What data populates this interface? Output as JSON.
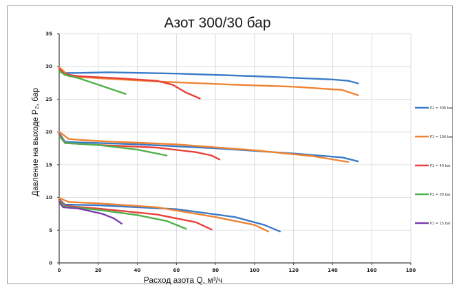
{
  "chart_data": {
    "type": "line",
    "title": "Азот 300/30 бар",
    "xlabel": "Расход азота Q, м³/ч",
    "ylabel": "Давление на выходе P₂, бар",
    "xlim": [
      0,
      180
    ],
    "ylim": [
      0,
      35
    ],
    "x_ticks": [
      0,
      20,
      40,
      60,
      80,
      100,
      120,
      140,
      160,
      180
    ],
    "y_ticks": [
      0,
      5,
      10,
      15,
      20,
      25,
      30,
      35
    ],
    "grid": true,
    "legend_position": "right",
    "series": [
      {
        "name": "P1 = 300 bar",
        "color": "#3a7bc8",
        "curves": [
          [
            [
              0,
              29.8
            ],
            [
              3,
              29.0
            ],
            [
              10,
              29.0
            ],
            [
              25,
              29.1
            ],
            [
              60,
              28.9
            ],
            [
              100,
              28.5
            ],
            [
              140,
              28.0
            ],
            [
              148,
              27.8
            ],
            [
              153,
              27.4
            ]
          ],
          [
            [
              0,
              19.8
            ],
            [
              3,
              18.5
            ],
            [
              10,
              18.4
            ],
            [
              40,
              18.1
            ],
            [
              80,
              17.5
            ],
            [
              120,
              16.7
            ],
            [
              145,
              16.1
            ],
            [
              153,
              15.5
            ]
          ],
          [
            [
              0,
              9.7
            ],
            [
              3,
              8.9
            ],
            [
              20,
              8.8
            ],
            [
              60,
              8.2
            ],
            [
              90,
              7.0
            ],
            [
              105,
              5.8
            ],
            [
              113,
              4.8
            ]
          ]
        ]
      },
      {
        "name": "P1 = 100 bar",
        "color": "#ee8332",
        "curves": [
          [
            [
              0,
              29.9
            ],
            [
              5,
              28.5
            ],
            [
              20,
              28.2
            ],
            [
              50,
              27.7
            ],
            [
              90,
              27.2
            ],
            [
              120,
              26.9
            ],
            [
              145,
              26.4
            ],
            [
              153,
              25.6
            ]
          ],
          [
            [
              0,
              20.0
            ],
            [
              5,
              18.9
            ],
            [
              20,
              18.6
            ],
            [
              60,
              18.1
            ],
            [
              100,
              17.2
            ],
            [
              130,
              16.3
            ],
            [
              148,
              15.4
            ]
          ],
          [
            [
              0,
              9.9
            ],
            [
              5,
              9.3
            ],
            [
              20,
              9.1
            ],
            [
              50,
              8.5
            ],
            [
              80,
              7.0
            ],
            [
              100,
              5.8
            ],
            [
              107,
              4.8
            ]
          ]
        ]
      },
      {
        "name": "P1 = 40 bar",
        "color": "#e8413a",
        "curves": [
          [
            [
              0,
              29.6
            ],
            [
              3,
              28.8
            ],
            [
              10,
              28.5
            ],
            [
              30,
              28.2
            ],
            [
              50,
              27.8
            ],
            [
              58,
              27.2
            ],
            [
              65,
              26.0
            ],
            [
              72,
              25.1
            ]
          ],
          [
            [
              0,
              19.6
            ],
            [
              3,
              18.3
            ],
            [
              20,
              18.0
            ],
            [
              50,
              17.6
            ],
            [
              70,
              16.9
            ],
            [
              78,
              16.4
            ],
            [
              82,
              15.8
            ]
          ],
          [
            [
              0,
              9.6
            ],
            [
              3,
              8.7
            ],
            [
              20,
              8.3
            ],
            [
              50,
              7.4
            ],
            [
              70,
              6.2
            ],
            [
              78,
              5.1
            ]
          ]
        ]
      },
      {
        "name": "P1 = 30 bar",
        "color": "#4fb04a",
        "curves": [
          [
            [
              0,
              29.3
            ],
            [
              3,
              28.7
            ],
            [
              10,
              28.2
            ],
            [
              20,
              27.2
            ],
            [
              28,
              26.4
            ],
            [
              34,
              25.8
            ]
          ],
          [
            [
              0,
              19.4
            ],
            [
              3,
              18.3
            ],
            [
              20,
              18.0
            ],
            [
              40,
              17.3
            ],
            [
              55,
              16.4
            ]
          ],
          [
            [
              0,
              9.4
            ],
            [
              3,
              8.6
            ],
            [
              20,
              8.1
            ],
            [
              40,
              7.3
            ],
            [
              55,
              6.4
            ],
            [
              65,
              5.2
            ]
          ]
        ]
      },
      {
        "name": "P1 = 15 bar",
        "color": "#7a3fb0",
        "curves": [
          [
            [
              0,
              9.3
            ],
            [
              2,
              8.5
            ],
            [
              10,
              8.3
            ],
            [
              22,
              7.5
            ],
            [
              28,
              6.8
            ],
            [
              32,
              6.0
            ]
          ]
        ]
      }
    ]
  }
}
